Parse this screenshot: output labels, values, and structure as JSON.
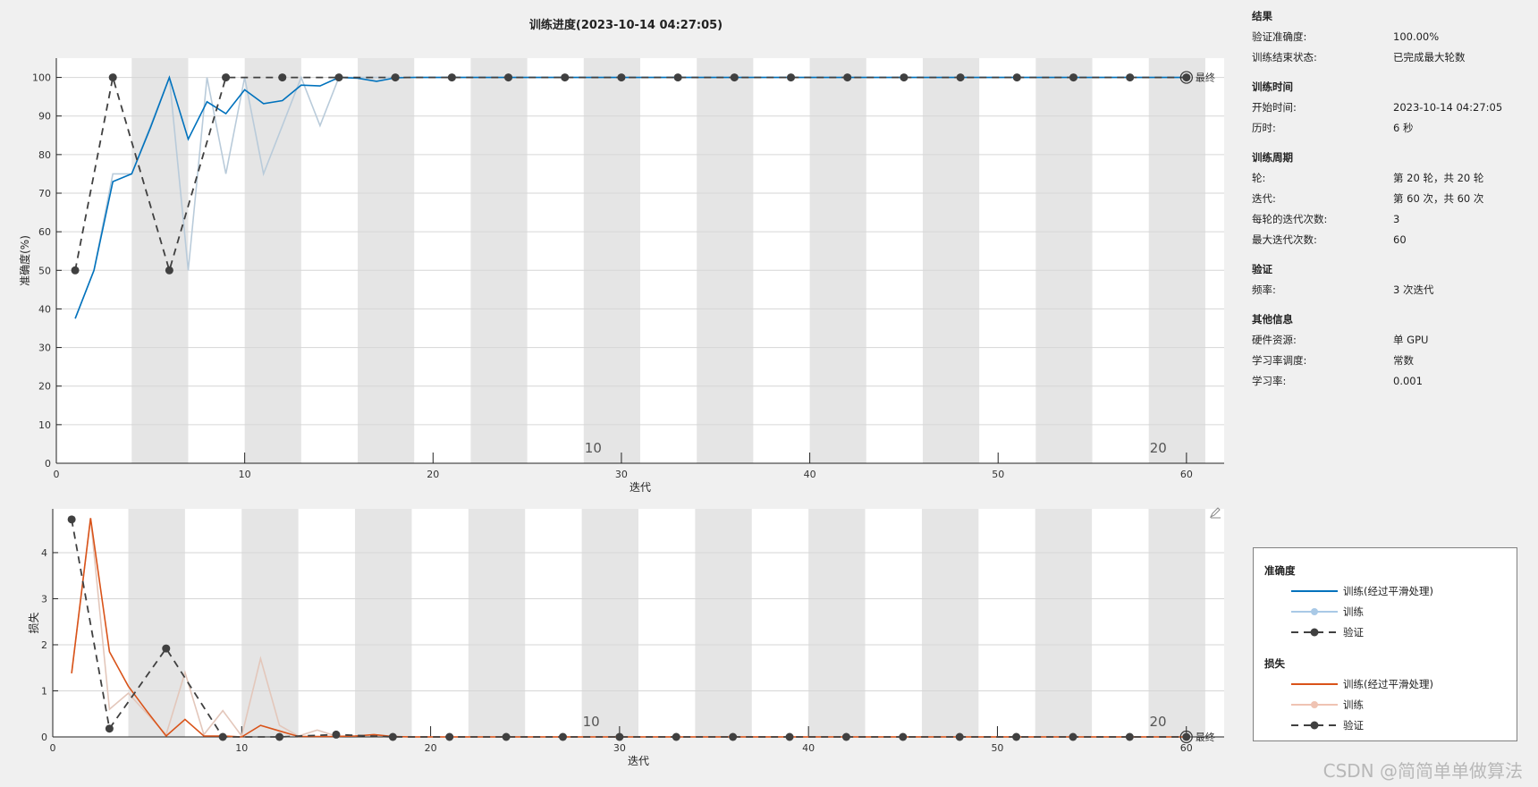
{
  "title": "训练进度(2023-10-14 04:27:05)",
  "chart_data": [
    {
      "type": "line",
      "ylabel": "准确度(%)",
      "xlabel": "迭代",
      "xlim": [
        0,
        62
      ],
      "ylim": [
        0,
        105
      ],
      "xticks": [
        0,
        10,
        20,
        30,
        40,
        50,
        60
      ],
      "yticks": [
        0,
        10,
        20,
        30,
        40,
        50,
        60,
        70,
        80,
        90,
        100
      ],
      "grid": true,
      "epoch_labels": [
        {
          "epoch": "10",
          "at": 28.5
        },
        {
          "epoch": "20",
          "at": 58.5
        }
      ],
      "final_label": "最终",
      "series": [
        {
          "name": "训练",
          "color": "#b9cbda",
          "x_start": 1,
          "values": [
            37.5,
            50,
            75,
            75,
            87.5,
            100,
            50,
            100,
            75,
            100,
            75,
            87.5,
            100,
            87.5,
            100,
            100,
            100,
            100,
            100,
            100,
            100,
            100,
            100,
            100,
            100,
            100,
            100,
            100,
            100,
            100,
            100,
            100,
            100,
            100,
            100,
            100,
            100,
            100,
            100,
            100,
            100,
            100,
            100,
            100,
            100,
            100,
            100,
            100,
            100,
            100,
            100,
            100,
            100,
            100,
            100,
            100,
            100,
            100,
            100,
            100
          ]
        },
        {
          "name": "训练(经过平滑处理)",
          "color": "#0072bd",
          "x_start": 1,
          "values": [
            37.5,
            50,
            73,
            75,
            87,
            100,
            84,
            93.7,
            90.6,
            96.8,
            93.2,
            94,
            98,
            97.8,
            100,
            99.8,
            99,
            99.9,
            100,
            100,
            100,
            100,
            100,
            100,
            100,
            100,
            100,
            100,
            100,
            100,
            100,
            100,
            100,
            100,
            100,
            100,
            100,
            100,
            100,
            100,
            100,
            100,
            100,
            100,
            100,
            100,
            100,
            100,
            100,
            100,
            100,
            100,
            100,
            100,
            100,
            100,
            100,
            100,
            100,
            100
          ]
        },
        {
          "name": "验证",
          "color": "#404040",
          "dashed": true,
          "x": [
            1,
            3,
            6,
            9,
            12,
            15,
            18,
            21,
            24,
            27,
            30,
            33,
            36,
            39,
            42,
            45,
            48,
            51,
            54,
            57,
            60
          ],
          "values": [
            50,
            100,
            50,
            100,
            100,
            100,
            100,
            100,
            100,
            100,
            100,
            100,
            100,
            100,
            100,
            100,
            100,
            100,
            100,
            100,
            100
          ]
        }
      ]
    },
    {
      "type": "line",
      "ylabel": "损失",
      "xlabel": "迭代",
      "xlim": [
        0,
        62
      ],
      "ylim": [
        0,
        4.95
      ],
      "xticks": [
        0,
        10,
        20,
        30,
        40,
        50,
        60
      ],
      "yticks": [
        0,
        1,
        2,
        3,
        4
      ],
      "grid": true,
      "epoch_labels": [
        {
          "epoch": "10",
          "at": 28.5
        },
        {
          "epoch": "20",
          "at": 58.5
        }
      ],
      "final_label": "最终",
      "series": [
        {
          "name": "训练",
          "color": "#e3c7bb",
          "x_start": 1,
          "values": [
            1.38,
            4.75,
            0.6,
            0.95,
            0.5,
            0.05,
            1.4,
            0.05,
            0.57,
            0.02,
            1.7,
            0.25,
            0.02,
            0.15,
            0.02,
            0.02,
            0.05,
            0,
            0,
            0,
            0,
            0,
            0,
            0,
            0,
            0,
            0,
            0,
            0,
            0,
            0,
            0,
            0,
            0,
            0,
            0,
            0,
            0,
            0,
            0,
            0,
            0,
            0,
            0,
            0,
            0,
            0,
            0,
            0,
            0,
            0,
            0,
            0,
            0,
            0,
            0,
            0,
            0,
            0,
            0
          ]
        },
        {
          "name": "训练(经过平滑处理)",
          "color": "#d95319",
          "x_start": 1,
          "values": [
            1.38,
            4.75,
            1.85,
            1.1,
            0.55,
            0.02,
            0.38,
            0.02,
            0.02,
            0,
            0.25,
            0.13,
            0.01,
            0.01,
            0.01,
            0.02,
            0.05,
            0.01,
            0,
            0,
            0,
            0,
            0,
            0,
            0,
            0,
            0,
            0,
            0,
            0,
            0,
            0,
            0,
            0,
            0,
            0,
            0,
            0,
            0,
            0,
            0,
            0,
            0,
            0,
            0,
            0,
            0,
            0,
            0,
            0,
            0,
            0,
            0,
            0,
            0,
            0,
            0,
            0,
            0,
            0
          ]
        },
        {
          "name": "验证",
          "color": "#404040",
          "dashed": true,
          "x": [
            1,
            3,
            6,
            9,
            12,
            15,
            18,
            21,
            24,
            27,
            30,
            33,
            36,
            39,
            42,
            45,
            48,
            51,
            54,
            57,
            60
          ],
          "values": [
            4.72,
            0.18,
            1.92,
            0,
            0,
            0.05,
            0,
            0,
            0,
            0,
            0,
            0,
            0,
            0,
            0,
            0,
            0,
            0,
            0,
            0,
            0
          ]
        }
      ]
    }
  ],
  "panel": {
    "sections": [
      {
        "heading": "结果",
        "rows": [
          [
            "验证准确度:",
            "100.00%"
          ],
          [
            "训练结束状态:",
            "已完成最大轮数"
          ]
        ]
      },
      {
        "heading": "训练时间",
        "rows": [
          [
            "开始时间:",
            "2023-10-14 04:27:05"
          ],
          [
            "历时:",
            "6 秒"
          ]
        ]
      },
      {
        "heading": "训练周期",
        "rows": [
          [
            "轮:",
            "第 20 轮，共 20 轮"
          ],
          [
            "迭代:",
            "第 60 次，共 60 次"
          ],
          [
            "每轮的迭代次数:",
            "3"
          ],
          [
            "最大迭代次数:",
            "60"
          ]
        ]
      },
      {
        "heading": "验证",
        "rows": [
          [
            "频率:",
            "3 次迭代"
          ]
        ]
      },
      {
        "heading": "其他信息",
        "rows": [
          [
            "硬件资源:",
            "单 GPU"
          ],
          [
            "学习率调度:",
            "常数"
          ],
          [
            "学习率:",
            "0.001"
          ]
        ]
      }
    ]
  },
  "legend": {
    "accuracy_heading": "准确度",
    "loss_heading": "损失",
    "items": [
      {
        "label": "训练(经过平滑处理)",
        "color": "#0072bd",
        "style": "solid"
      },
      {
        "label": "训练",
        "color": "#a9c9e6",
        "style": "marker"
      },
      {
        "label": "验证",
        "color": "#404040",
        "style": "dashed-marker"
      },
      {
        "label": "训练(经过平滑处理)",
        "color": "#d95319",
        "style": "solid"
      },
      {
        "label": "训练",
        "color": "#efc3b3",
        "style": "marker"
      },
      {
        "label": "验证",
        "color": "#404040",
        "style": "dashed-marker"
      }
    ]
  },
  "watermark": "CSDN @简简单单做算法",
  "colors": {
    "epoch_band": "#e5e5e5",
    "grid": "#d6d6d6",
    "background": "#f0f0f0"
  }
}
